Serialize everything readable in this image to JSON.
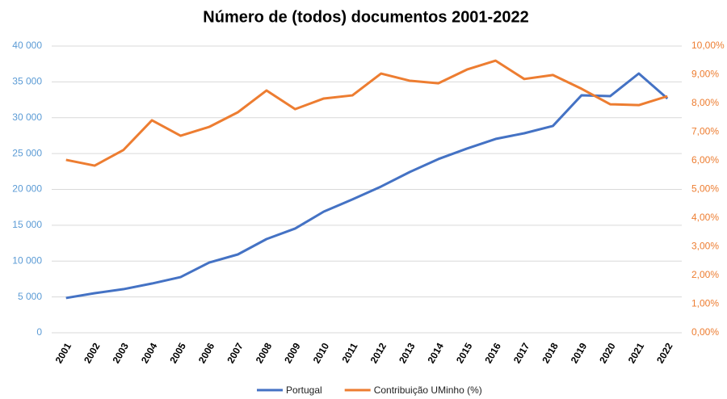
{
  "chart_data": {
    "type": "line",
    "title": "Número de (todos) documentos 2001-2022",
    "categories": [
      "2001",
      "2002",
      "2003",
      "2004",
      "2005",
      "2006",
      "2007",
      "2008",
      "2009",
      "2010",
      "2011",
      "2012",
      "2013",
      "2014",
      "2015",
      "2016",
      "2017",
      "2018",
      "2019",
      "2020",
      "2021",
      "2022"
    ],
    "series": [
      {
        "name": "Portugal",
        "color": "#4472c4",
        "values": [
          4850,
          5520,
          6080,
          6870,
          7770,
          9800,
          10930,
          13070,
          14540,
          16900,
          18600,
          20400,
          22420,
          24230,
          25700,
          27040,
          27830,
          28850,
          33130,
          33010,
          36170,
          32680
        ]
      },
      {
        "name": "Contribuição UMinho (%)",
        "color": "#ed7d31",
        "axis": "y2",
        "values": [
          6.03,
          5.83,
          6.37,
          7.41,
          6.87,
          7.18,
          7.69,
          8.45,
          7.8,
          8.17,
          8.28,
          9.04,
          8.79,
          8.7,
          9.18,
          9.49,
          8.85,
          8.99,
          8.51,
          7.97,
          7.94,
          8.25
        ]
      }
    ],
    "ylim": [
      0,
      40000
    ],
    "yticks": [
      0,
      {
        "value": 5000,
        "label": "5 000"
      },
      {
        "value": 10000,
        "label": "10 000"
      },
      {
        "value": 15000,
        "label": "15 000"
      },
      {
        "value": 20000,
        "label": "20 000"
      },
      {
        "value": 25000,
        "label": "25 000"
      },
      {
        "value": 30000,
        "label": "30 000"
      },
      {
        "value": 35000,
        "label": "35 000"
      },
      {
        "value": 40000,
        "label": "40 000"
      }
    ],
    "y2lim": [
      0,
      10
    ],
    "y2ticks": [
      {
        "value": 0,
        "label": "0,00%"
      },
      {
        "value": 1,
        "label": "1,00%"
      },
      {
        "value": 2,
        "label": "2,00%"
      },
      {
        "value": 3,
        "label": "3,00%"
      },
      {
        "value": 4,
        "label": "4,00%"
      },
      {
        "value": 5,
        "label": "5,00%"
      },
      {
        "value": 6,
        "label": "6,00%"
      },
      {
        "value": 7,
        "label": "7,00%"
      },
      {
        "value": 8,
        "label": "8,00%"
      },
      {
        "value": 9,
        "label": "9,00%"
      },
      {
        "value": 10,
        "label": "10,00%"
      }
    ],
    "grid": true,
    "legend": "bottom"
  }
}
